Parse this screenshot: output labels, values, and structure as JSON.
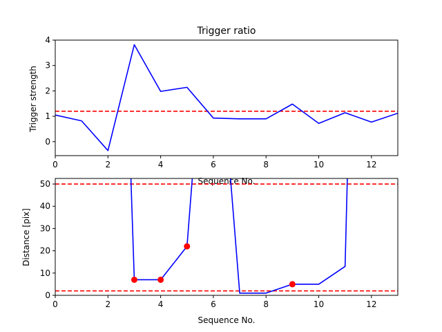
{
  "chart_data": [
    {
      "type": "line",
      "title": "Trigger ratio",
      "xlabel": "Sequence No.",
      "ylabel": "Trigger strength",
      "xlim": [
        0,
        13
      ],
      "ylim": [
        -0.55,
        4
      ],
      "x_ticks": [
        0,
        2,
        4,
        6,
        8,
        10,
        12
      ],
      "y_ticks": [
        0,
        1,
        2,
        3,
        4
      ],
      "grid": false,
      "series": [
        {
          "color": "#0000ff",
          "x": [
            0,
            1,
            2,
            3,
            4,
            5,
            6,
            7,
            8,
            9,
            10,
            11,
            12,
            13
          ],
          "y": [
            1.05,
            0.82,
            -0.35,
            3.82,
            1.98,
            2.14,
            0.93,
            0.9,
            0.9,
            1.48,
            0.72,
            1.14,
            0.77,
            1.12
          ]
        }
      ],
      "hlines": [
        {
          "y": 1.2,
          "color": "#ff0000",
          "style": "dashed"
        }
      ]
    },
    {
      "type": "line",
      "title": "",
      "xlabel": "Sequence No.",
      "ylabel": "Distance [pix]",
      "xlim": [
        0,
        13
      ],
      "ylim": [
        0,
        52.5
      ],
      "x_ticks": [
        0,
        2,
        4,
        6,
        8,
        10,
        12
      ],
      "y_ticks": [
        0,
        10,
        20,
        30,
        40,
        50
      ],
      "grid": false,
      "series": [
        {
          "color": "#0000ff",
          "x": [
            2.85,
            3,
            4,
            5,
            5.25,
            6.6,
            7,
            8,
            9,
            10,
            11,
            11.1
          ],
          "y": [
            60,
            7,
            7,
            22,
            60,
            60,
            1,
            1,
            5,
            5,
            13,
            60
          ]
        }
      ],
      "markers": {
        "color": "#ff0000",
        "x": [
          3,
          4,
          5,
          9
        ],
        "y": [
          7,
          7,
          22,
          5
        ]
      },
      "hlines": [
        {
          "y": 50,
          "color": "#ff0000",
          "style": "dashed"
        },
        {
          "y": 2,
          "color": "#ff0000",
          "style": "dashed"
        }
      ]
    }
  ]
}
